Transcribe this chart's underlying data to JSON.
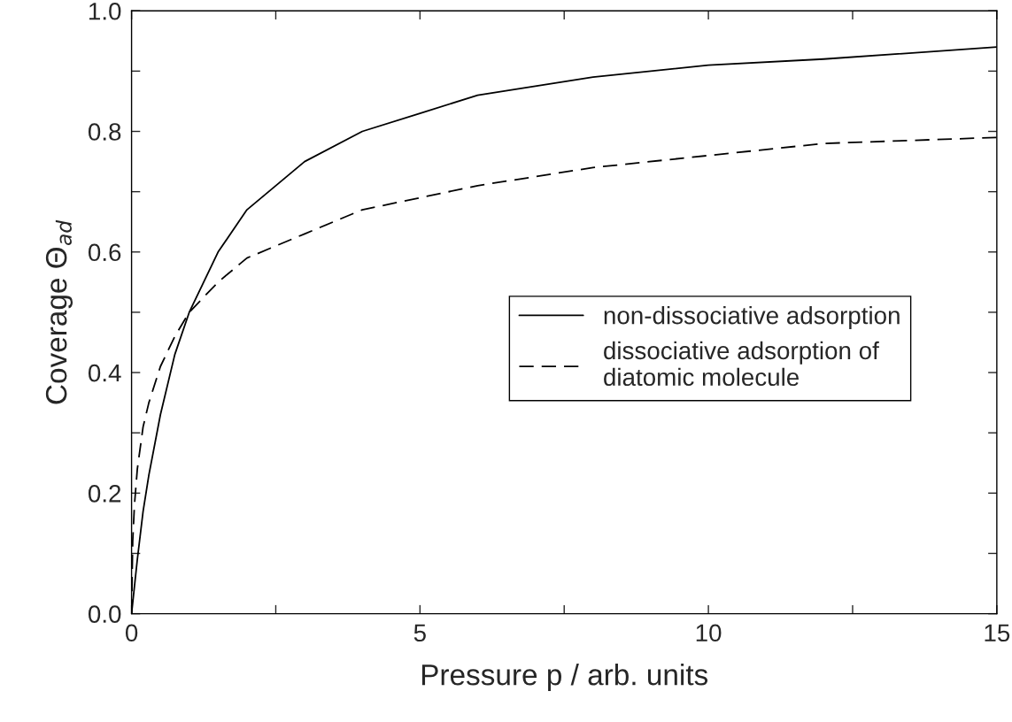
{
  "chart_data": {
    "type": "line",
    "xlabel": "Pressure p / arb. units",
    "ylabel": "Coverage Θ$_{ad}$",
    "series": [
      {
        "name": "non-dissociative adsorption",
        "color": "#000000",
        "line_style": "solid",
        "x": [
          0,
          0.1,
          0.2,
          0.3,
          0.5,
          0.75,
          1,
          1.5,
          2,
          2.5,
          3,
          4,
          5,
          6,
          7,
          8,
          10,
          12,
          15
        ],
        "values": [
          0,
          0.09,
          0.17,
          0.23,
          0.33,
          0.43,
          0.5,
          0.6,
          0.67,
          0.71,
          0.75,
          0.8,
          0.83,
          0.86,
          0.875,
          0.89,
          0.91,
          0.92,
          0.94
        ]
      },
      {
        "name": "dissociative adsorption of\ndiatomic molecule",
        "color": "#000000",
        "line_style": "dashed",
        "x": [
          0,
          0.02,
          0.05,
          0.1,
          0.2,
          0.3,
          0.5,
          0.75,
          1,
          1.5,
          2,
          3,
          4,
          5,
          6,
          8,
          10,
          12,
          15
        ],
        "values": [
          0,
          0.12,
          0.18,
          0.24,
          0.31,
          0.35,
          0.41,
          0.46,
          0.5,
          0.55,
          0.59,
          0.63,
          0.67,
          0.69,
          0.71,
          0.74,
          0.76,
          0.78,
          0.79
        ]
      }
    ],
    "xlim": [
      0,
      15
    ],
    "ylim": [
      0,
      1
    ],
    "xticks": [
      0,
      {
        "value": 2.5,
        "label": null
      },
      5,
      {
        "value": 7.5,
        "label": null
      },
      10,
      {
        "value": 12.5,
        "label": null
      },
      15
    ],
    "yticks": [
      {
        "value": 0,
        "label": "0.0"
      },
      {
        "value": 0.1,
        "label": null
      },
      {
        "value": 0.2,
        "label": "0.2"
      },
      {
        "value": 0.3,
        "label": null
      },
      {
        "value": 0.4,
        "label": "0.4"
      },
      {
        "value": 0.5,
        "label": null
      },
      {
        "value": 0.6,
        "label": "0.6"
      },
      {
        "value": 0.7,
        "label": null
      },
      {
        "value": 0.8,
        "label": "0.8"
      },
      {
        "value": 0.9,
        "label": null
      },
      {
        "value": 1.0,
        "label": "1.0"
      }
    ],
    "grid": false,
    "legend": "right"
  }
}
